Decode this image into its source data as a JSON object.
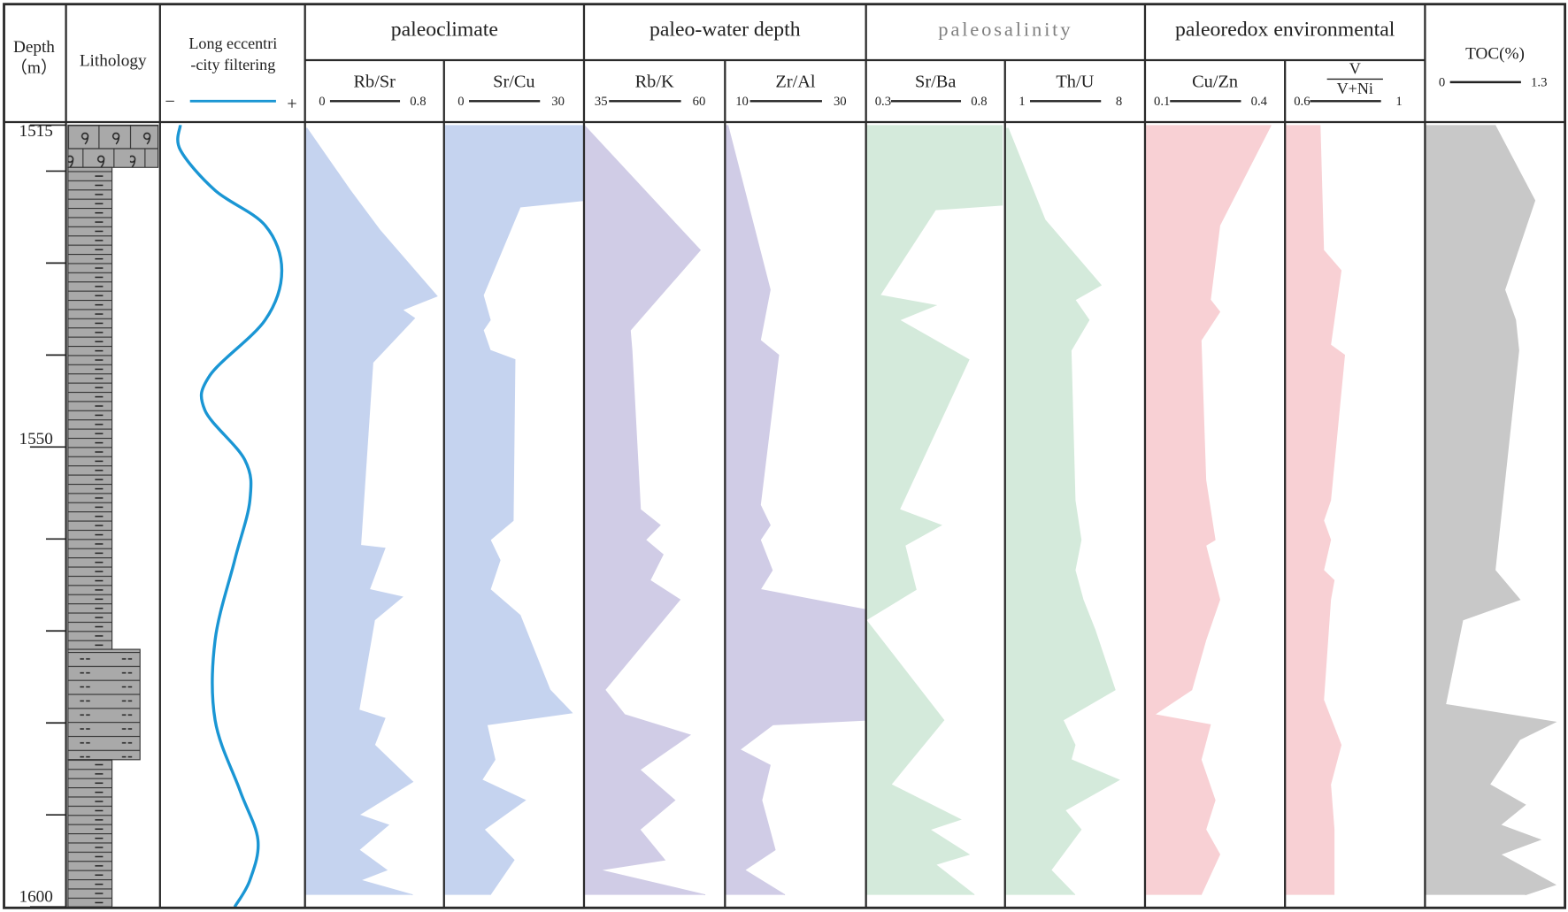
{
  "chart_data": {
    "type": "well-log",
    "depth_label": [
      "Depth",
      "（m）"
    ],
    "ylim": [
      1515,
      1600
    ],
    "yticks": [
      1515,
      1550,
      1600
    ],
    "minor_yticks": [
      1520,
      1530,
      1540,
      1560,
      1570,
      1580,
      1590
    ],
    "lithology": {
      "title": "Lithology",
      "layers": [
        {
          "top": 1515,
          "bottom": 1519.6,
          "rock": "limestone"
        },
        {
          "top": 1519.6,
          "bottom": 1572,
          "rock": "mudstone"
        },
        {
          "top": 1572,
          "bottom": 1584,
          "rock": "silty-mudstone"
        },
        {
          "top": 1584,
          "bottom": 1600,
          "rock": "mudstone"
        }
      ]
    },
    "eccentricity": {
      "title": [
        "Long eccentri",
        "-city filtering"
      ],
      "low_label": "−",
      "high_label": "+",
      "color": "#1a96d4",
      "xlim": [
        -1,
        1
      ],
      "depth": [
        1515,
        1517.7,
        1522.1,
        1525.9,
        1530.8,
        1536.2,
        1542.2,
        1546,
        1551.4,
        1555.8,
        1562.3,
        1571,
        1579.7,
        1587.3,
        1592.7,
        1597.1,
        1600
      ],
      "values": [
        -0.72,
        -0.72,
        -0.24,
        0.45,
        0.68,
        0.45,
        -0.31,
        -0.38,
        0.17,
        0.24,
        0.03,
        -0.24,
        -0.24,
        0.1,
        0.35,
        0.24,
        0.03
      ]
    },
    "groups": [
      {
        "title": "paleoclimate",
        "series": [
          {
            "name": "Rb/Sr",
            "color": "#c5d3ef",
            "xlim": [
              0,
              0.8
            ],
            "xticks": [
              0,
              0.8
            ],
            "depth": [
              1515.3,
              1522.1,
              1526.4,
              1533.6,
              1535.1,
              1536.0,
              1540.8,
              1560.7,
              1561.0,
              1565.5,
              1566.3,
              1568.8,
              1578.6,
              1579.5,
              1582.4,
              1586.4,
              1590.0,
              1591.1,
              1593.8,
              1596.0,
              1597.1,
              1598.7
            ],
            "values": [
              0.01,
              0.26,
              0.43,
              0.76,
              0.56,
              0.63,
              0.39,
              0.32,
              0.46,
              0.37,
              0.56,
              0.4,
              0.31,
              0.46,
              0.4,
              0.62,
              0.31,
              0.48,
              0.31,
              0.47,
              0.32,
              0.62
            ]
          },
          {
            "name": "Sr/Cu",
            "color": "#c5d3ef",
            "xlim": [
              0,
              30
            ],
            "xticks": [
              0,
              30
            ],
            "depth": [
              1515,
              1523.2,
              1523.9,
              1533.5,
              1536.2,
              1537.3,
              1539.5,
              1540.5,
              1558,
              1560.1,
              1562.3,
              1565.5,
              1568.3,
              1576.4,
              1578.9,
              1580.2,
              1584,
              1586.2,
              1588.4,
              1591.6,
              1594.9,
              1598.7
            ],
            "values": [
              30,
              30,
              16.3,
              8.4,
              9.9,
              8.4,
              9.9,
              15.2,
              14.8,
              9.9,
              12,
              9.9,
              16.3,
              22.7,
              27.4,
              9.2,
              10.9,
              8.1,
              17.4,
              8.6,
              15,
              9.9
            ]
          }
        ]
      },
      {
        "title": "paleo-water depth",
        "series": [
          {
            "name": "Rb/K",
            "color": "#d0cce6",
            "xlim": [
              35,
              60
            ],
            "xticks": [
              35,
              60
            ],
            "depth": [
              1515,
              1528.6,
              1537.3,
              1539.5,
              1556.8,
              1558.5,
              1560.1,
              1561.7,
              1564.5,
              1566.6,
              1576.4,
              1579.1,
              1581.3,
              1585.1,
              1588.4,
              1591.6,
              1594.9,
              1596,
              1598.7
            ],
            "values": [
              35,
              55.6,
              43.2,
              43.5,
              45,
              48.5,
              45.9,
              49,
              46.7,
              52,
              38.7,
              42.2,
              53.8,
              44.9,
              51.1,
              44.9,
              49.3,
              37.8,
              56.5
            ]
          },
          {
            "name": "Zr/Al",
            "color": "#d0cce6",
            "xlim": [
              10,
              30
            ],
            "xticks": [
              10,
              30
            ],
            "depth": [
              1515,
              1532.9,
              1538.4,
              1540,
              1556.3,
              1558.5,
              1560.1,
              1563.4,
              1565.5,
              1567.7,
              1579.7,
              1580.2,
              1582.9,
              1584.6,
              1588.4,
              1593.8,
              1596,
              1598.7
            ],
            "values": [
              10.4,
              16.4,
              15,
              17.6,
              15,
              16.4,
              15,
              16.7,
              15,
              30,
              30,
              16.8,
              12.1,
              16.4,
              15.2,
              17.1,
              12.8,
              18.5
            ]
          }
        ]
      },
      {
        "title": "paleosalinity",
        "title_color": "#808080",
        "series": [
          {
            "name": "Sr/Ba",
            "color": "#d4eadb",
            "xlim": [
              0.3,
              0.8
            ],
            "xticks": [
              0.3,
              0.8
            ],
            "depth": [
              1515,
              1523.7,
              1524.2,
              1533.5,
              1534.6,
              1536.2,
              1540.5,
              1556.8,
              1558.5,
              1560.7,
              1565.5,
              1568.8,
              1579.7,
              1586.7,
              1590.5,
              1591.6,
              1594.3,
              1595.4,
              1598.7
            ],
            "values": [
              0.79,
              0.79,
              0.55,
              0.35,
              0.55,
              0.42,
              0.67,
              0.42,
              0.57,
              0.44,
              0.48,
              0.3,
              0.58,
              0.39,
              0.64,
              0.53,
              0.67,
              0.55,
              0.69
            ]
          },
          {
            "name": "Th/U",
            "color": "#d4eadb",
            "xlim": [
              1,
              8
            ],
            "xticks": [
              1,
              8
            ],
            "depth": [
              1515.3,
              1525.3,
              1532.4,
              1534,
              1536.2,
              1539.5,
              1555.8,
              1560.1,
              1563.4,
              1566.6,
              1569.9,
              1576.4,
              1579.7,
              1582.4,
              1584,
              1586.2,
              1589.5,
              1591.6,
              1596,
              1598.7
            ],
            "values": [
              1.15,
              3,
              5.8,
              4.5,
              5.2,
              4.3,
              4.5,
              4.8,
              4.5,
              4.9,
              5.5,
              6.5,
              3.9,
              4.5,
              4.3,
              6.7,
              4,
              4.8,
              3.3,
              4.5
            ]
          }
        ]
      },
      {
        "title": "paleoredox environmental",
        "series": [
          {
            "name": "Cu/Zn",
            "color": "#f8d0d4",
            "xlim": [
              0.1,
              0.4
            ],
            "xticks": [
              0.1,
              0.4
            ],
            "depth": [
              1515,
              1525.9,
              1534,
              1535.3,
              1538.4,
              1553.6,
              1560.1,
              1560.7,
              1566.6,
              1571,
              1576.4,
              1579.1,
              1580.2,
              1584,
              1588.4,
              1591.6,
              1594.3,
              1598.7
            ],
            "values": [
              0.37,
              0.26,
              0.24,
              0.26,
              0.22,
              0.23,
              0.25,
              0.23,
              0.26,
              0.23,
              0.2,
              0.12,
              0.24,
              0.22,
              0.25,
              0.23,
              0.26,
              0.22
            ]
          },
          {
            "name": [
              "V",
              "V+Ni"
            ],
            "color": "#f8d0d4",
            "xlim": [
              0.6,
              1
            ],
            "xticks": [
              0.6,
              1
            ],
            "depth": [
              1515,
              1528.6,
              1530.8,
              1538.9,
              1540,
              1555.8,
              1558,
              1560.1,
              1563.4,
              1564.5,
              1566.6,
              1577.5,
              1582.4,
              1586.7,
              1591.6,
              1598.7
            ],
            "values": [
              0.7,
              0.71,
              0.76,
              0.73,
              0.77,
              0.73,
              0.71,
              0.73,
              0.71,
              0.74,
              0.73,
              0.71,
              0.76,
              0.73,
              0.74,
              0.74
            ]
          }
        ]
      },
      {
        "title": "TOC(%)",
        "series": [
          {
            "color": "#c8c8c8",
            "xlim": [
              0,
              1.3
            ],
            "xticks": [
              0,
              1.3
            ],
            "depth": [
              1515,
              1523.2,
              1532.9,
              1536.2,
              1539.5,
              1563.4,
              1566.6,
              1568.8,
              1578,
              1579.9,
              1581.8,
              1586.7,
              1588.9,
              1591.1,
              1592.7,
              1594.3,
              1597.6,
              1598.7
            ],
            "values": [
              0.65,
              1.02,
              0.74,
              0.84,
              0.87,
              0.65,
              0.88,
              0.35,
              0.19,
              1.21,
              0.88,
              0.6,
              0.93,
              0.7,
              1.07,
              0.7,
              1.21,
              0.93
            ]
          }
        ]
      }
    ]
  }
}
